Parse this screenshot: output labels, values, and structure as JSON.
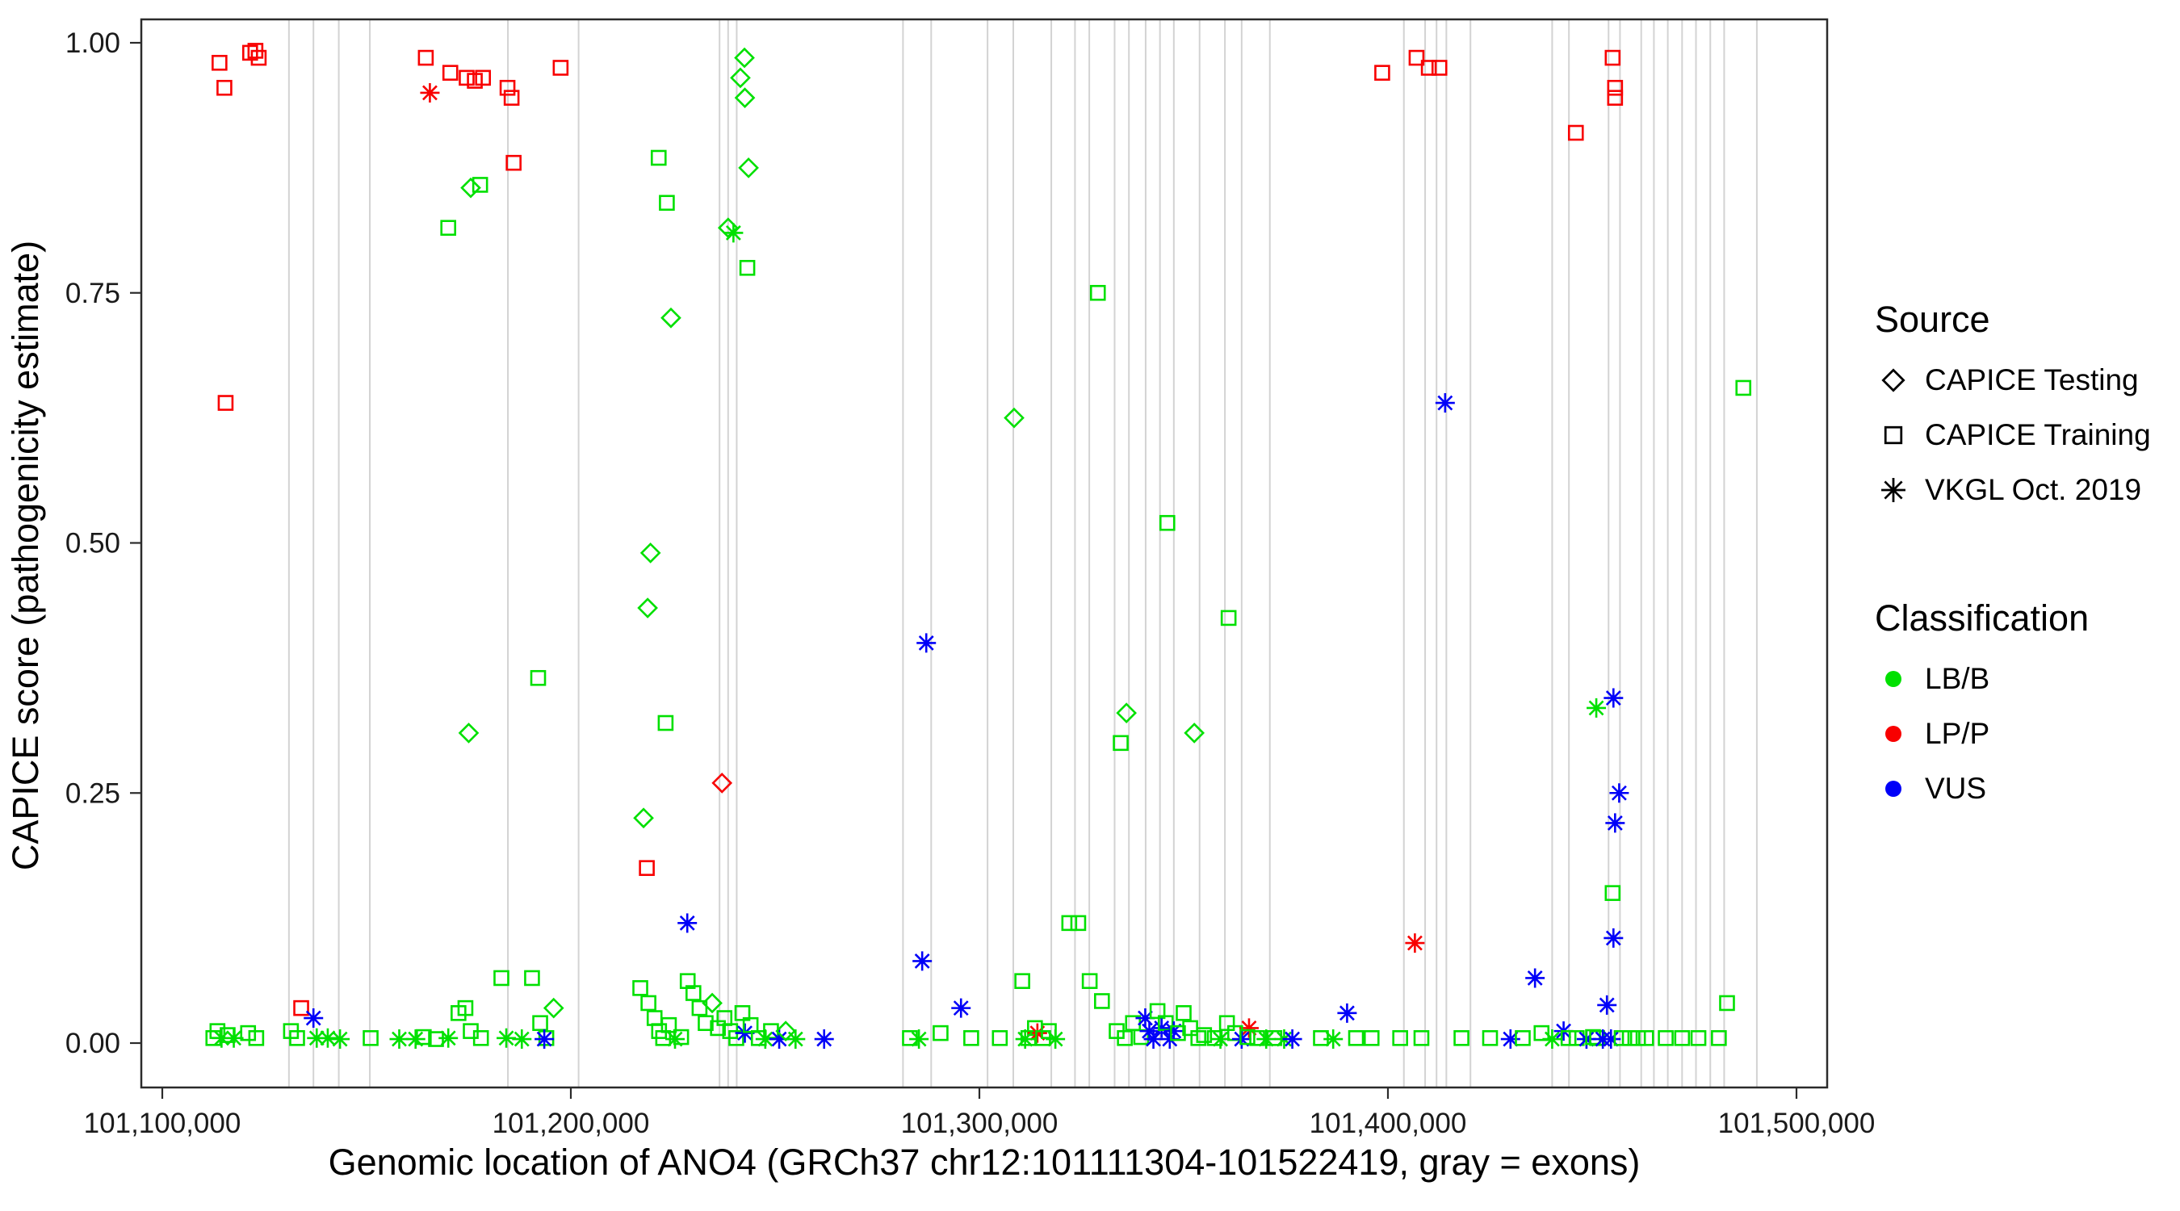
{
  "chart_data": {
    "type": "scatter",
    "title": "",
    "xlabel": "Genomic location of ANO4 (GRCh37 chr12:101111304-101522419, gray = exons)",
    "ylabel": "CAPICE score (pathogenicity estimate)",
    "xlim": [
      101095000,
      101508000
    ],
    "ylim": [
      0,
      1.0
    ],
    "grid": "vertical gray exon lines only",
    "x_ticks": [
      {
        "value": 101100000,
        "label": "101,100,000"
      },
      {
        "value": 101200000,
        "label": "101,200,000"
      },
      {
        "value": 101300000,
        "label": "101,300,000"
      },
      {
        "value": 101400000,
        "label": "101,400,000"
      },
      {
        "value": 101500000,
        "label": "101,500,000"
      }
    ],
    "y_ticks": [
      {
        "value": 0.0,
        "label": "0.00"
      },
      {
        "value": 0.25,
        "label": "0.25"
      },
      {
        "value": 0.5,
        "label": "0.50"
      },
      {
        "value": 0.75,
        "label": "0.75"
      },
      {
        "value": 1.0,
        "label": "1.00"
      }
    ],
    "colors": {
      "LB/B": "#00e000",
      "LP/P": "#f80000",
      "VUS": "#0000f8",
      "exon": "#d3d3d3"
    },
    "point_encoding": {
      "format": "[genomic_position, capice_score, source_code, classification_code]",
      "source_codes": {
        "t": "CAPICE Testing (open diamond)",
        "q": "CAPICE Training (open square)",
        "v": "VKGL Oct. 2019 (asterisk)"
      },
      "classification_codes": {
        "b": "LB/B",
        "p": "LP/P",
        "u": "VUS"
      }
    },
    "exons": [
      101131000,
      101137000,
      101143200,
      101150800,
      101184600,
      101201900,
      101236400,
      101238500,
      101240600,
      101281300,
      101288200,
      101302000,
      101308300,
      101317600,
      101323400,
      101326900,
      101333100,
      101336600,
      101340700,
      101344200,
      101347600,
      101353900,
      101360100,
      101364200,
      101371100,
      101403900,
      101409100,
      101411900,
      101414300,
      101420200,
      101440200,
      101444300,
      101454000,
      101456800,
      101462000,
      101465100,
      101468500,
      101472000,
      101475400,
      101478900,
      101482300,
      101490300
    ],
    "points": [
      [
        101114000,
        0.98,
        "q",
        "p"
      ],
      [
        101115200,
        0.955,
        "q",
        "p"
      ],
      [
        101121500,
        0.99,
        "q",
        "p"
      ],
      [
        101122800,
        0.992,
        "q",
        "p"
      ],
      [
        101123600,
        0.985,
        "q",
        "p"
      ],
      [
        101115500,
        0.64,
        "q",
        "p"
      ],
      [
        101112500,
        0.005,
        "q",
        "b"
      ],
      [
        101113500,
        0.012,
        "q",
        "b"
      ],
      [
        101114500,
        0.005,
        "v",
        "b"
      ],
      [
        101116000,
        0.008,
        "q",
        "b"
      ],
      [
        101117500,
        0.005,
        "v",
        "b"
      ],
      [
        101121000,
        0.01,
        "q",
        "b"
      ],
      [
        101123000,
        0.005,
        "q",
        "b"
      ],
      [
        101134000,
        0.035,
        "q",
        "p"
      ],
      [
        101131500,
        0.012,
        "q",
        "b"
      ],
      [
        101133000,
        0.005,
        "q",
        "b"
      ],
      [
        101137000,
        0.025,
        "v",
        "u"
      ],
      [
        101137800,
        0.005,
        "v",
        "b"
      ],
      [
        101140500,
        0.005,
        "v",
        "b"
      ],
      [
        101143500,
        0.004,
        "v",
        "b"
      ],
      [
        101151000,
        0.005,
        "q",
        "b"
      ],
      [
        101158000,
        0.004,
        "v",
        "b"
      ],
      [
        101164500,
        0.985,
        "q",
        "p"
      ],
      [
        101165500,
        0.95,
        "v",
        "p"
      ],
      [
        101170500,
        0.97,
        "q",
        "p"
      ],
      [
        101174500,
        0.965,
        "q",
        "p"
      ],
      [
        101176500,
        0.962,
        "q",
        "p"
      ],
      [
        101178500,
        0.965,
        "q",
        "p"
      ],
      [
        101184500,
        0.955,
        "q",
        "p"
      ],
      [
        101185500,
        0.945,
        "q",
        "p"
      ],
      [
        101186000,
        0.88,
        "q",
        "p"
      ],
      [
        101197500,
        0.975,
        "q",
        "p"
      ],
      [
        101175500,
        0.855,
        "t",
        "b"
      ],
      [
        101177800,
        0.858,
        "q",
        "b"
      ],
      [
        101170000,
        0.815,
        "q",
        "b"
      ],
      [
        101175000,
        0.31,
        "t",
        "b"
      ],
      [
        101192000,
        0.365,
        "q",
        "b"
      ],
      [
        101162000,
        0.004,
        "v",
        "b"
      ],
      [
        101164000,
        0.006,
        "q",
        "b"
      ],
      [
        101167000,
        0.004,
        "q",
        "b"
      ],
      [
        101170000,
        0.005,
        "v",
        "b"
      ],
      [
        101172500,
        0.03,
        "q",
        "b"
      ],
      [
        101174200,
        0.035,
        "q",
        "b"
      ],
      [
        101175500,
        0.012,
        "q",
        "b"
      ],
      [
        101178000,
        0.005,
        "q",
        "b"
      ],
      [
        101183000,
        0.065,
        "q",
        "b"
      ],
      [
        101184200,
        0.005,
        "v",
        "b"
      ],
      [
        101188000,
        0.004,
        "v",
        "b"
      ],
      [
        101190500,
        0.065,
        "q",
        "b"
      ],
      [
        101192500,
        0.02,
        "q",
        "b"
      ],
      [
        101194000,
        0.005,
        "q",
        "b"
      ],
      [
        101195800,
        0.035,
        "t",
        "b"
      ],
      [
        101193500,
        0.004,
        "v",
        "u"
      ],
      [
        101221500,
        0.885,
        "q",
        "b"
      ],
      [
        101223500,
        0.84,
        "q",
        "b"
      ],
      [
        101224500,
        0.725,
        "t",
        "b"
      ],
      [
        101219500,
        0.49,
        "t",
        "b"
      ],
      [
        101218800,
        0.435,
        "t",
        "b"
      ],
      [
        101223200,
        0.32,
        "q",
        "b"
      ],
      [
        101217800,
        0.225,
        "t",
        "b"
      ],
      [
        101218600,
        0.175,
        "q",
        "p"
      ],
      [
        101237000,
        0.26,
        "t",
        "p"
      ],
      [
        101238500,
        0.815,
        "t",
        "b"
      ],
      [
        101239800,
        0.81,
        "v",
        "b"
      ],
      [
        101242500,
        0.985,
        "t",
        "b"
      ],
      [
        101241500,
        0.965,
        "t",
        "b"
      ],
      [
        101242600,
        0.945,
        "t",
        "b"
      ],
      [
        101243500,
        0.875,
        "t",
        "b"
      ],
      [
        101243200,
        0.775,
        "q",
        "b"
      ],
      [
        101228500,
        0.12,
        "v",
        "u"
      ],
      [
        101217000,
        0.055,
        "q",
        "b"
      ],
      [
        101219000,
        0.04,
        "q",
        "b"
      ],
      [
        101220500,
        0.025,
        "q",
        "b"
      ],
      [
        101221600,
        0.012,
        "q",
        "b"
      ],
      [
        101222600,
        0.005,
        "q",
        "b"
      ],
      [
        101224000,
        0.018,
        "q",
        "b"
      ],
      [
        101225500,
        0.004,
        "v",
        "b"
      ],
      [
        101227000,
        0.006,
        "q",
        "b"
      ],
      [
        101228600,
        0.062,
        "q",
        "b"
      ],
      [
        101230000,
        0.05,
        "q",
        "b"
      ],
      [
        101231500,
        0.035,
        "q",
        "b"
      ],
      [
        101233000,
        0.02,
        "q",
        "b"
      ],
      [
        101234600,
        0.04,
        "t",
        "b"
      ],
      [
        101236000,
        0.015,
        "q",
        "b"
      ],
      [
        101237600,
        0.025,
        "q",
        "b"
      ],
      [
        101239000,
        0.012,
        "q",
        "b"
      ],
      [
        101240500,
        0.005,
        "q",
        "b"
      ],
      [
        101242000,
        0.03,
        "q",
        "b"
      ],
      [
        101242600,
        0.01,
        "v",
        "u"
      ],
      [
        101244000,
        0.018,
        "q",
        "b"
      ],
      [
        101246000,
        0.005,
        "q",
        "b"
      ],
      [
        101247600,
        0.004,
        "v",
        "b"
      ],
      [
        101249000,
        0.012,
        "q",
        "b"
      ],
      [
        101251000,
        0.004,
        "v",
        "u"
      ],
      [
        101252600,
        0.012,
        "t",
        "b"
      ],
      [
        101255000,
        0.004,
        "v",
        "b"
      ],
      [
        101262000,
        0.004,
        "v",
        "u"
      ],
      [
        101287000,
        0.4,
        "v",
        "u"
      ],
      [
        101286000,
        0.082,
        "v",
        "u"
      ],
      [
        101295500,
        0.035,
        "v",
        "u"
      ],
      [
        101283000,
        0.005,
        "q",
        "b"
      ],
      [
        101285200,
        0.004,
        "v",
        "b"
      ],
      [
        101290500,
        0.01,
        "q",
        "b"
      ],
      [
        101298000,
        0.005,
        "q",
        "b"
      ],
      [
        101305000,
        0.005,
        "q",
        "b"
      ],
      [
        101308500,
        0.625,
        "t",
        "b"
      ],
      [
        101329000,
        0.75,
        "q",
        "b"
      ],
      [
        101310500,
        0.062,
        "q",
        "b"
      ],
      [
        101312000,
        0.005,
        "q",
        "b"
      ],
      [
        101313600,
        0.015,
        "q",
        "b"
      ],
      [
        101314200,
        0.01,
        "v",
        "p"
      ],
      [
        101315600,
        0.005,
        "q",
        "b"
      ],
      [
        101317000,
        0.012,
        "q",
        "b"
      ],
      [
        101311200,
        0.004,
        "v",
        "b"
      ],
      [
        101318600,
        0.004,
        "v",
        "b"
      ],
      [
        101322000,
        0.12,
        "q",
        "b"
      ],
      [
        101324200,
        0.12,
        "q",
        "b"
      ],
      [
        101327000,
        0.062,
        "q",
        "b"
      ],
      [
        101330000,
        0.042,
        "q",
        "b"
      ],
      [
        101336000,
        0.33,
        "t",
        "b"
      ],
      [
        101334600,
        0.3,
        "q",
        "b"
      ],
      [
        101346000,
        0.52,
        "q",
        "b"
      ],
      [
        101352600,
        0.31,
        "t",
        "b"
      ],
      [
        101333600,
        0.012,
        "q",
        "b"
      ],
      [
        101335600,
        0.005,
        "q",
        "b"
      ],
      [
        101337600,
        0.02,
        "q",
        "b"
      ],
      [
        101339600,
        0.006,
        "q",
        "b"
      ],
      [
        101340600,
        0.025,
        "v",
        "u"
      ],
      [
        101341600,
        0.012,
        "v",
        "u"
      ],
      [
        101342600,
        0.004,
        "v",
        "u"
      ],
      [
        101343600,
        0.032,
        "q",
        "b"
      ],
      [
        101344600,
        0.015,
        "v",
        "u"
      ],
      [
        101345600,
        0.02,
        "q",
        "b"
      ],
      [
        101346600,
        0.004,
        "v",
        "u"
      ],
      [
        101347600,
        0.012,
        "v",
        "u"
      ],
      [
        101348600,
        0.01,
        "q",
        "b"
      ],
      [
        101350000,
        0.03,
        "q",
        "b"
      ],
      [
        101351600,
        0.015,
        "q",
        "b"
      ],
      [
        101353600,
        0.005,
        "q",
        "b"
      ],
      [
        101355000,
        0.008,
        "q",
        "b"
      ],
      [
        101361000,
        0.425,
        "q",
        "b"
      ],
      [
        101366000,
        0.015,
        "v",
        "p"
      ],
      [
        101357600,
        0.005,
        "q",
        "b"
      ],
      [
        101359000,
        0.004,
        "v",
        "b"
      ],
      [
        101360600,
        0.02,
        "q",
        "b"
      ],
      [
        101362600,
        0.01,
        "q",
        "b"
      ],
      [
        101364200,
        0.004,
        "v",
        "u"
      ],
      [
        101365600,
        0.006,
        "q",
        "b"
      ],
      [
        101368000,
        0.005,
        "q",
        "b"
      ],
      [
        101370200,
        0.004,
        "v",
        "b"
      ],
      [
        101372200,
        0.005,
        "q",
        "b"
      ],
      [
        101374600,
        0.004,
        "v",
        "b"
      ],
      [
        101376600,
        0.004,
        "v",
        "u"
      ],
      [
        101390000,
        0.03,
        "v",
        "u"
      ],
      [
        101383600,
        0.005,
        "q",
        "b"
      ],
      [
        101386600,
        0.004,
        "v",
        "b"
      ],
      [
        101392200,
        0.005,
        "q",
        "b"
      ],
      [
        101396000,
        0.005,
        "q",
        "b"
      ],
      [
        101398600,
        0.97,
        "q",
        "p"
      ],
      [
        101407000,
        0.985,
        "q",
        "p"
      ],
      [
        101410000,
        0.975,
        "q",
        "p"
      ],
      [
        101412600,
        0.975,
        "q",
        "p"
      ],
      [
        101414000,
        0.64,
        "v",
        "u"
      ],
      [
        101406600,
        0.1,
        "v",
        "p"
      ],
      [
        101403000,
        0.005,
        "q",
        "b"
      ],
      [
        101408200,
        0.005,
        "q",
        "b"
      ],
      [
        101418000,
        0.005,
        "q",
        "b"
      ],
      [
        101425000,
        0.005,
        "q",
        "b"
      ],
      [
        101430000,
        0.004,
        "v",
        "u"
      ],
      [
        101433000,
        0.005,
        "q",
        "b"
      ],
      [
        101436000,
        0.065,
        "v",
        "u"
      ],
      [
        101437600,
        0.01,
        "q",
        "b"
      ],
      [
        101440200,
        0.004,
        "v",
        "b"
      ],
      [
        101443000,
        0.012,
        "v",
        "u"
      ],
      [
        101446200,
        0.005,
        "q",
        "b"
      ],
      [
        101448600,
        0.004,
        "v",
        "u"
      ],
      [
        101451200,
        0.005,
        "q",
        "b"
      ],
      [
        101446000,
        0.91,
        "q",
        "p"
      ],
      [
        101455000,
        0.985,
        "q",
        "p"
      ],
      [
        101455600,
        0.955,
        "q",
        "p"
      ],
      [
        101455600,
        0.945,
        "q",
        "p"
      ],
      [
        101455200,
        0.345,
        "v",
        "u"
      ],
      [
        101451000,
        0.335,
        "v",
        "b"
      ],
      [
        101456600,
        0.25,
        "v",
        "u"
      ],
      [
        101455600,
        0.22,
        "v",
        "u"
      ],
      [
        101455000,
        0.15,
        "q",
        "b"
      ],
      [
        101455200,
        0.105,
        "v",
        "u"
      ],
      [
        101453600,
        0.038,
        "v",
        "u"
      ],
      [
        101444200,
        0.005,
        "q",
        "b"
      ],
      [
        101450200,
        0.006,
        "q",
        "b"
      ],
      [
        101452600,
        0.004,
        "v",
        "u"
      ],
      [
        101454600,
        0.004,
        "v",
        "u"
      ],
      [
        101457200,
        0.005,
        "q",
        "b"
      ],
      [
        101459200,
        0.005,
        "q",
        "b"
      ],
      [
        101461200,
        0.005,
        "q",
        "b"
      ],
      [
        101463200,
        0.005,
        "q",
        "b"
      ],
      [
        101468000,
        0.005,
        "q",
        "b"
      ],
      [
        101472000,
        0.005,
        "q",
        "b"
      ],
      [
        101476000,
        0.005,
        "q",
        "b"
      ],
      [
        101487000,
        0.655,
        "q",
        "b"
      ],
      [
        101483000,
        0.04,
        "q",
        "b"
      ],
      [
        101481000,
        0.005,
        "q",
        "b"
      ]
    ]
  },
  "legend": {
    "source": {
      "title": "Source",
      "items": [
        {
          "label": "CAPICE Testing",
          "shape": "diamond"
        },
        {
          "label": "CAPICE Training",
          "shape": "square"
        },
        {
          "label": "VKGL Oct. 2019",
          "shape": "asterisk"
        }
      ]
    },
    "classification": {
      "title": "Classification",
      "items": [
        {
          "label": "LB/B",
          "color": "#00e000"
        },
        {
          "label": "LP/P",
          "color": "#f80000"
        },
        {
          "label": "VUS",
          "color": "#0000f8"
        }
      ]
    }
  }
}
